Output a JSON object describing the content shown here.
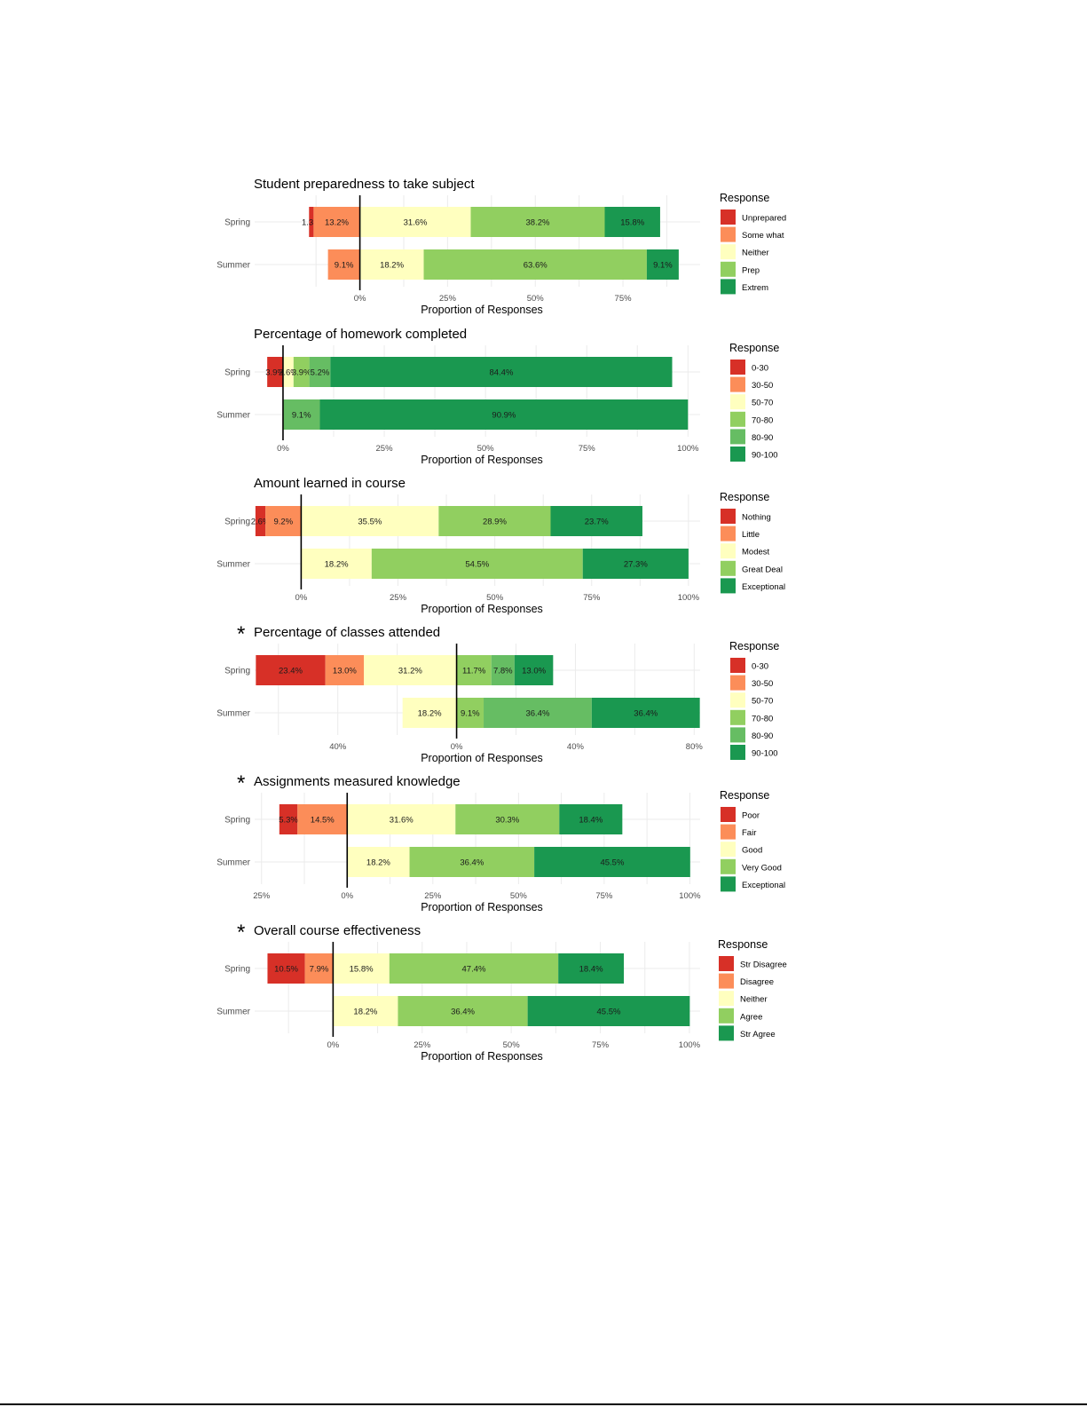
{
  "colors": {
    "c1": "#d73027",
    "c2": "#fc8d59",
    "c3": "#ffffbf",
    "c4": "#91cf60",
    "c5": "#66bd63",
    "c6": "#1a9850",
    "grid": "#ebebeb",
    "text": "#000000",
    "axis_text": "#4d4d4d"
  },
  "chart_data": [
    {
      "type": "bar",
      "orientation": "horizontal-diverging-stacked",
      "title": "Student preparedness to take subject",
      "xlabel": "Proportion of Responses",
      "legend_title": "Response",
      "legend_position": "right",
      "categories": [
        "Spring",
        "Summer"
      ],
      "neutral_index": 2,
      "xlim": [
        -0.3,
        0.97
      ],
      "xticks": [
        0,
        0.25,
        0.5,
        0.75
      ],
      "xtick_labels": [
        "0%",
        "25%",
        "50%",
        "75%"
      ],
      "series": [
        {
          "name": "Unprepared",
          "color": "#d73027",
          "values": [
            1.3,
            0
          ],
          "labels": [
            "1.3%",
            ""
          ]
        },
        {
          "name": "Some what",
          "color": "#fc8d59",
          "values": [
            13.2,
            9.1
          ],
          "labels": [
            "13.2%",
            "9.1%"
          ]
        },
        {
          "name": "Neither",
          "color": "#ffffbf",
          "values": [
            31.6,
            18.2
          ],
          "labels": [
            "31.6%",
            "18.2%"
          ]
        },
        {
          "name": "Prep",
          "color": "#91cf60",
          "values": [
            38.2,
            63.6
          ],
          "labels": [
            "38.2%",
            "63.6%"
          ]
        },
        {
          "name": "Extrem",
          "color": "#1a9850",
          "values": [
            15.8,
            9.1
          ],
          "labels": [
            "15.8%",
            "9.1%"
          ]
        }
      ]
    },
    {
      "type": "bar",
      "orientation": "horizontal-diverging-stacked",
      "title": "Percentage of homework completed",
      "xlabel": "Proportion of Responses",
      "legend_title": "Response",
      "legend_position": "right",
      "categories": [
        "Spring",
        "Summer"
      ],
      "neutral_index": 2,
      "xlim": [
        -0.07,
        1.03
      ],
      "xticks": [
        0,
        0.25,
        0.5,
        0.75,
        1.0
      ],
      "xtick_labels": [
        "0%",
        "25%",
        "50%",
        "75%",
        "100%"
      ],
      "series": [
        {
          "name": "0-30",
          "color": "#d73027",
          "values": [
            3.9,
            0
          ],
          "labels": [
            "3.9%",
            ""
          ]
        },
        {
          "name": "30-50",
          "color": "#fc8d59",
          "values": [
            0,
            0
          ],
          "labels": [
            "",
            ""
          ]
        },
        {
          "name": "50-70",
          "color": "#ffffbf",
          "values": [
            2.6,
            0
          ],
          "labels": [
            "2.6%",
            ""
          ]
        },
        {
          "name": "70-80",
          "color": "#91cf60",
          "values": [
            3.9,
            0
          ],
          "labels": [
            "3.9%",
            ""
          ]
        },
        {
          "name": "80-90",
          "color": "#66bd63",
          "values": [
            5.2,
            9.1
          ],
          "labels": [
            "5.2%",
            "9.1%"
          ]
        },
        {
          "name": "90-100",
          "color": "#1a9850",
          "values": [
            84.4,
            90.9
          ],
          "labels": [
            "84.4%",
            "90.9%"
          ]
        }
      ]
    },
    {
      "type": "bar",
      "orientation": "horizontal-diverging-stacked",
      "title": "Amount learned in course",
      "xlabel": "Proportion of Responses",
      "legend_title": "Response",
      "legend_position": "right",
      "categories": [
        "Spring",
        "Summer"
      ],
      "neutral_index": 2,
      "xlim": [
        -0.12,
        1.03
      ],
      "xticks": [
        0,
        0.25,
        0.5,
        0.75,
        1.0
      ],
      "xtick_labels": [
        "0%",
        "25%",
        "50%",
        "75%",
        "100%"
      ],
      "series": [
        {
          "name": "Nothing",
          "color": "#d73027",
          "values": [
            2.6,
            0
          ],
          "labels": [
            "2.6%",
            ""
          ]
        },
        {
          "name": "Little",
          "color": "#fc8d59",
          "values": [
            9.2,
            0
          ],
          "labels": [
            "9.2%",
            ""
          ]
        },
        {
          "name": "Modest",
          "color": "#ffffbf",
          "values": [
            35.5,
            18.2
          ],
          "labels": [
            "35.5%",
            "18.2%"
          ]
        },
        {
          "name": "Great Deal",
          "color": "#91cf60",
          "values": [
            28.9,
            54.5
          ],
          "labels": [
            "28.9%",
            "54.5%"
          ]
        },
        {
          "name": "Exceptional",
          "color": "#1a9850",
          "values": [
            23.7,
            27.3
          ],
          "labels": [
            "23.7%",
            "27.3%"
          ]
        }
      ]
    },
    {
      "type": "bar",
      "orientation": "horizontal-diverging-stacked",
      "title": "Percentage of classes attended",
      "marker": "*",
      "xlabel": "Proportion of Responses",
      "legend_title": "Response",
      "legend_position": "right",
      "categories": [
        "Spring",
        "Summer"
      ],
      "neutral_index": 3,
      "xlim": [
        -0.68,
        0.82
      ],
      "xticks": [
        -0.4,
        0,
        0.4,
        0.8
      ],
      "xtick_labels": [
        "40%",
        "0%",
        "40%",
        "80%"
      ],
      "series": [
        {
          "name": "0-30",
          "color": "#d73027",
          "values": [
            23.4,
            0
          ],
          "labels": [
            "23.4%",
            ""
          ]
        },
        {
          "name": "30-50",
          "color": "#fc8d59",
          "values": [
            13.0,
            0
          ],
          "labels": [
            "13.0%",
            ""
          ]
        },
        {
          "name": "50-70",
          "color": "#ffffbf",
          "values": [
            31.2,
            18.2
          ],
          "labels": [
            "31.2%",
            "18.2%"
          ]
        },
        {
          "name": "70-80",
          "color": "#91cf60",
          "values": [
            11.7,
            9.1
          ],
          "labels": [
            "11.7%",
            "9.1%"
          ]
        },
        {
          "name": "80-90",
          "color": "#66bd63",
          "values": [
            7.8,
            36.4
          ],
          "labels": [
            "7.8%",
            "36.4%"
          ]
        },
        {
          "name": "90-100",
          "color": "#1a9850",
          "values": [
            13.0,
            36.4
          ],
          "labels": [
            "13.0%",
            "36.4%"
          ]
        }
      ]
    },
    {
      "type": "bar",
      "orientation": "horizontal-diverging-stacked",
      "title": "Assignments measured knowledge",
      "marker": "*",
      "xlabel": "Proportion of Responses",
      "legend_title": "Response",
      "legend_position": "right",
      "categories": [
        "Spring",
        "Summer"
      ],
      "neutral_index": 2,
      "xlim": [
        -0.27,
        1.03
      ],
      "xticks": [
        -0.25,
        0,
        0.25,
        0.5,
        0.75,
        1.0
      ],
      "xtick_labels": [
        "25%",
        "0%",
        "25%",
        "50%",
        "75%",
        "100%"
      ],
      "series": [
        {
          "name": "Poor",
          "color": "#d73027",
          "values": [
            5.3,
            0
          ],
          "labels": [
            "5.3%",
            ""
          ]
        },
        {
          "name": "Fair",
          "color": "#fc8d59",
          "values": [
            14.5,
            0
          ],
          "labels": [
            "14.5%",
            ""
          ]
        },
        {
          "name": "Good",
          "color": "#ffffbf",
          "values": [
            31.6,
            18.2
          ],
          "labels": [
            "31.6%",
            "18.2%"
          ]
        },
        {
          "name": "Very Good",
          "color": "#91cf60",
          "values": [
            30.3,
            36.4
          ],
          "labels": [
            "30.3%",
            "36.4%"
          ]
        },
        {
          "name": "Exceptional",
          "color": "#1a9850",
          "values": [
            18.4,
            45.5
          ],
          "labels": [
            "18.4%",
            "45.5%"
          ]
        }
      ]
    },
    {
      "type": "bar",
      "orientation": "horizontal-diverging-stacked",
      "title": "Overall course effectiveness",
      "marker": "*",
      "xlabel": "Proportion of Responses",
      "legend_title": "Response",
      "legend_position": "right",
      "categories": [
        "Spring",
        "Summer"
      ],
      "neutral_index": 2,
      "xlim": [
        -0.22,
        1.03
      ],
      "xticks": [
        0,
        0.25,
        0.5,
        0.75,
        1.0
      ],
      "xtick_labels": [
        "0%",
        "25%",
        "50%",
        "75%",
        "100%"
      ],
      "series": [
        {
          "name": "Str Disagree",
          "color": "#d73027",
          "values": [
            10.5,
            0
          ],
          "labels": [
            "10.5%",
            ""
          ]
        },
        {
          "name": "Disagree",
          "color": "#fc8d59",
          "values": [
            7.9,
            0
          ],
          "labels": [
            "7.9%",
            ""
          ]
        },
        {
          "name": "Neither",
          "color": "#ffffbf",
          "values": [
            15.8,
            18.2
          ],
          "labels": [
            "15.8%",
            "18.2%"
          ]
        },
        {
          "name": "Agree",
          "color": "#91cf60",
          "values": [
            47.4,
            36.4
          ],
          "labels": [
            "47.4%",
            "36.4%"
          ]
        },
        {
          "name": "Str Agree",
          "color": "#1a9850",
          "values": [
            18.4,
            45.5
          ],
          "labels": [
            "18.4%",
            "45.5%"
          ]
        }
      ]
    }
  ]
}
